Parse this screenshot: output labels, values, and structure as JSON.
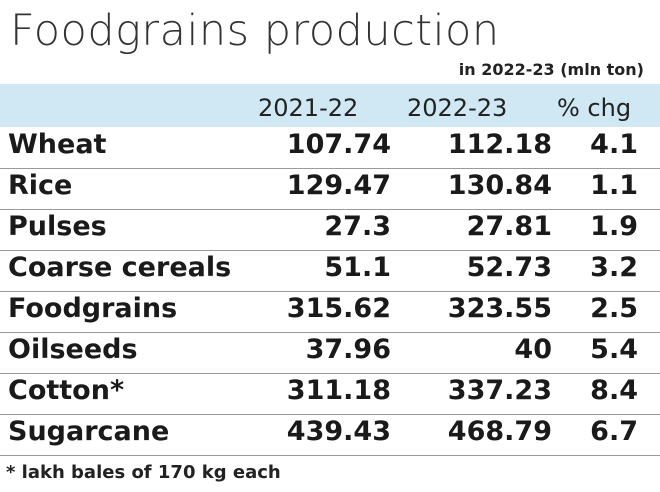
{
  "chart_data": {
    "type": "table",
    "title": "Foodgrains production",
    "subtitle": "in 2022-23 (mln ton)",
    "columns": [
      "",
      "2021-22",
      "2022-23",
      "% chg"
    ],
    "rows": [
      {
        "name": "Wheat",
        "v2021": "107.74",
        "v2022": "112.18",
        "chg": "4.1"
      },
      {
        "name": "Rice",
        "v2021": "129.47",
        "v2022": "130.84",
        "chg": "1.1"
      },
      {
        "name": "Pulses",
        "v2021": "27.3",
        "v2022": "27.81",
        "chg": "1.9"
      },
      {
        "name": "Coarse cereals",
        "v2021": "51.1",
        "v2022": "52.73",
        "chg": "3.2"
      },
      {
        "name": "Foodgrains",
        "v2021": "315.62",
        "v2022": "323.55",
        "chg": "2.5"
      },
      {
        "name": "Oilseeds",
        "v2021": "37.96",
        "v2022": "40",
        "chg": "5.4"
      },
      {
        "name": "Cotton*",
        "v2021": "311.18",
        "v2022": "337.23",
        "chg": "8.4"
      },
      {
        "name": "Sugarcane",
        "v2021": "439.43",
        "v2022": "468.79",
        "chg": "6.7"
      }
    ],
    "footnote": "* lakh bales of 170 kg each"
  },
  "colors": {
    "header_background": "#cfe8f3",
    "divider": "#9a9a9a",
    "text": "#1a1a1a"
  }
}
